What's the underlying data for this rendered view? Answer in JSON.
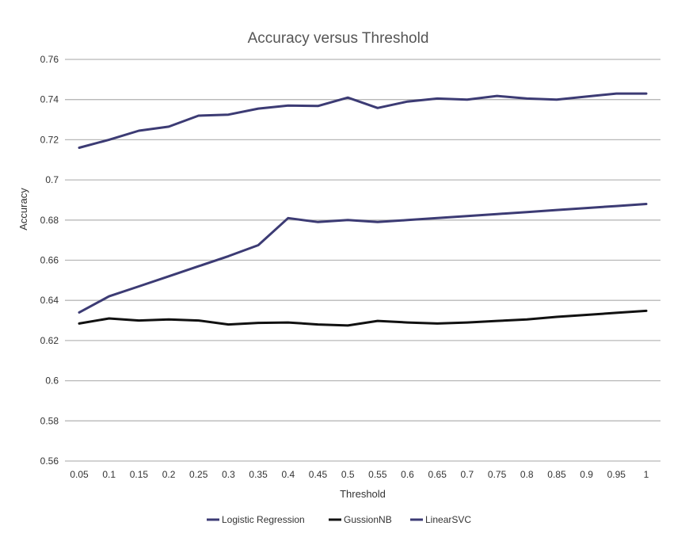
{
  "chart_data": {
    "type": "line",
    "title": "Accuracy versus Threshold",
    "xlabel": "Threshold",
    "ylabel": "Accuracy",
    "x": [
      "0.05",
      "0.1",
      "0.15",
      "0.2",
      "0.25",
      "0.3",
      "0.35",
      "0.4",
      "0.45",
      "0.5",
      "0.55",
      "0.6",
      "0.65",
      "0.7",
      "0.75",
      "0.8",
      "0.85",
      "0.9",
      "0.95",
      "1"
    ],
    "yticks": [
      "0.56",
      "0.58",
      "0.6",
      "0.62",
      "0.64",
      "0.66",
      "0.68",
      "0.7",
      "0.72",
      "0.74",
      "0.76"
    ],
    "ylim": [
      0.56,
      0.76
    ],
    "grid": true,
    "legend_position": "bottom",
    "series": [
      {
        "name": "Logistic Regression",
        "color": "#3c3b74",
        "values": [
          0.634,
          0.642,
          0.647,
          0.652,
          0.657,
          0.662,
          0.6675,
          0.681,
          0.679,
          0.68,
          0.679,
          0.68,
          0.681,
          0.682,
          0.683,
          0.684,
          0.685,
          0.686,
          0.687,
          0.688
        ]
      },
      {
        "name": "GussionNB",
        "color": "#111111",
        "values": [
          0.6285,
          0.631,
          0.63,
          0.6305,
          0.63,
          0.628,
          0.6288,
          0.629,
          0.628,
          0.6275,
          0.6298,
          0.629,
          0.6285,
          0.629,
          0.6298,
          0.6305,
          0.6318,
          0.6328,
          0.6338,
          0.6348
        ]
      },
      {
        "name": "LinearSVC",
        "color": "#3c3b74",
        "values": [
          0.716,
          0.72,
          0.7245,
          0.7265,
          0.732,
          0.7325,
          0.7355,
          0.737,
          0.7368,
          0.741,
          0.7358,
          0.739,
          0.7405,
          0.74,
          0.7418,
          0.7405,
          0.74,
          0.7415,
          0.743,
          0.743
        ]
      }
    ]
  }
}
